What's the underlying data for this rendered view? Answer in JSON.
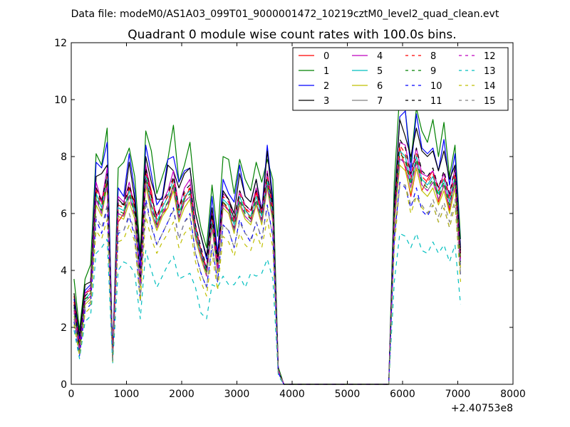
{
  "figure": {
    "suptitle": "Data file: modeM0/AS1A03_099T01_9000001472_10219cztM0_level2_quad_clean.evt"
  },
  "chart_data": {
    "type": "line",
    "title": "Quadrant 0 module wise count rates with 100.0s bins.",
    "xlabel": "",
    "ylabel": "",
    "x_offset_label": "+2.40753e8",
    "xlim": [
      0,
      8000
    ],
    "ylim": [
      0,
      12
    ],
    "xticks": [
      0,
      1000,
      2000,
      3000,
      4000,
      5000,
      6000,
      7000,
      8000
    ],
    "yticks": [
      0,
      2,
      4,
      6,
      8,
      10,
      12
    ],
    "xtick_labels": [
      "0",
      "1000",
      "2000",
      "3000",
      "4000",
      "5000",
      "6000",
      "7000",
      "8000"
    ],
    "ytick_labels": [
      "0",
      "2",
      "4",
      "6",
      "8",
      "10",
      "12"
    ],
    "grid": false,
    "legend_position": "top-right",
    "legend_columns": 4,
    "x": [
      50,
      150,
      250,
      350,
      450,
      550,
      650,
      750,
      850,
      950,
      1050,
      1150,
      1250,
      1350,
      1450,
      1550,
      1650,
      1750,
      1850,
      1950,
      2050,
      2150,
      2250,
      2350,
      2450,
      2550,
      2650,
      2750,
      2850,
      2950,
      3050,
      3150,
      3250,
      3350,
      3450,
      3550,
      3650,
      3750,
      3850,
      5750,
      5850,
      5950,
      6050,
      6150,
      6250,
      6350,
      6450,
      6550,
      6650,
      6750,
      6850,
      6950,
      7050
    ],
    "series": [
      {
        "name": "0",
        "color": "#ff0000",
        "dash": "solid",
        "values": [
          3.1,
          1.4,
          3.2,
          3.3,
          6.9,
          6.5,
          7.1,
          1.1,
          5.7,
          6.0,
          6.9,
          6.4,
          3.6,
          7.6,
          6.8,
          5.6,
          6.0,
          6.2,
          7.0,
          5.8,
          6.5,
          6.9,
          5.3,
          4.7,
          4.0,
          5.7,
          4.2,
          6.4,
          6.1,
          5.7,
          6.4,
          6.2,
          5.8,
          6.8,
          5.9,
          7.0,
          6.1,
          0.5,
          0,
          0,
          5.5,
          8.3,
          7.6,
          6.6,
          7.6,
          6.8,
          7.2,
          7.5,
          6.4,
          7.0,
          6.1,
          7.2,
          4.6
        ]
      },
      {
        "name": "1",
        "color": "#008000",
        "dash": "solid",
        "values": [
          3.7,
          1.9,
          3.7,
          4.2,
          8.1,
          7.7,
          9.0,
          1.0,
          7.6,
          7.8,
          8.3,
          7.3,
          4.6,
          8.9,
          8.2,
          6.7,
          7.3,
          7.9,
          9.1,
          7.1,
          7.7,
          8.5,
          6.5,
          5.5,
          4.8,
          7.0,
          5.2,
          8.0,
          7.9,
          6.7,
          7.9,
          7.2,
          6.8,
          7.8,
          7.1,
          7.9,
          7.2,
          0.6,
          0,
          0,
          7.1,
          10.3,
          9.6,
          7.8,
          9.7,
          8.9,
          8.5,
          9.3,
          8.0,
          9.2,
          7.3,
          8.4,
          5.1
        ]
      },
      {
        "name": "2",
        "color": "#0000ff",
        "dash": "solid",
        "values": [
          3.0,
          1.6,
          3.3,
          3.5,
          7.8,
          7.6,
          8.5,
          1.1,
          6.9,
          6.6,
          8.1,
          6.8,
          4.1,
          8.4,
          7.4,
          6.3,
          6.6,
          7.9,
          8.0,
          7.1,
          7.5,
          7.6,
          6.0,
          5.2,
          4.4,
          6.6,
          4.6,
          7.2,
          6.7,
          6.4,
          7.7,
          6.6,
          6.4,
          7.2,
          6.1,
          8.4,
          6.5,
          0.5,
          0,
          0,
          6.4,
          9.4,
          9.6,
          7.5,
          9.5,
          8.3,
          8.1,
          8.3,
          7.5,
          8.6,
          7.0,
          8.1,
          4.8
        ]
      },
      {
        "name": "3",
        "color": "#000000",
        "dash": "solid",
        "values": [
          3.2,
          1.7,
          3.5,
          3.6,
          7.3,
          7.4,
          7.7,
          1.0,
          6.5,
          6.3,
          7.8,
          6.5,
          4.5,
          8.0,
          7.1,
          6.5,
          6.5,
          7.7,
          7.5,
          6.9,
          7.4,
          7.6,
          6.0,
          5.2,
          4.5,
          6.2,
          4.4,
          6.8,
          6.5,
          6.0,
          7.4,
          6.6,
          6.4,
          7.2,
          6.0,
          8.2,
          6.3,
          0.5,
          0,
          0,
          6.3,
          9.3,
          8.7,
          8.0,
          9.0,
          8.2,
          8.0,
          8.2,
          7.5,
          8.2,
          7.2,
          7.7,
          4.7
        ]
      },
      {
        "name": "4",
        "color": "#bf00bf",
        "dash": "solid",
        "values": [
          2.8,
          1.3,
          3.2,
          3.4,
          7.1,
          6.4,
          7.6,
          1.0,
          6.6,
          6.4,
          7.1,
          6.2,
          3.7,
          7.7,
          6.6,
          5.9,
          6.4,
          6.8,
          7.5,
          6.2,
          6.9,
          7.2,
          5.6,
          4.7,
          4.1,
          6.0,
          4.3,
          6.7,
          6.5,
          5.8,
          6.8,
          6.3,
          6.1,
          6.9,
          6.1,
          7.5,
          6.2,
          0.5,
          0,
          0,
          6.1,
          8.5,
          8.4,
          7.3,
          8.3,
          7.4,
          7.3,
          7.5,
          6.9,
          7.4,
          6.6,
          7.6,
          4.4
        ]
      },
      {
        "name": "5",
        "color": "#00bfbf",
        "dash": "solid",
        "values": [
          2.6,
          1.2,
          3.0,
          3.2,
          6.7,
          6.2,
          7.4,
          0.9,
          6.2,
          6.1,
          6.8,
          6.1,
          3.6,
          7.4,
          6.3,
          5.7,
          6.2,
          6.6,
          7.2,
          6.0,
          6.6,
          6.8,
          5.4,
          4.6,
          4.0,
          5.8,
          4.1,
          6.5,
          6.3,
          5.6,
          6.6,
          6.1,
          5.9,
          6.6,
          5.9,
          7.2,
          6.0,
          0.5,
          0,
          0,
          5.9,
          8.2,
          8.0,
          7.1,
          8.0,
          7.2,
          7.0,
          7.3,
          6.7,
          7.2,
          6.4,
          7.3,
          4.3
        ]
      },
      {
        "name": "6",
        "color": "#bfbf00",
        "dash": "solid",
        "values": [
          2.4,
          1.1,
          2.8,
          3.0,
          6.3,
          5.9,
          7.0,
          0.9,
          5.9,
          5.8,
          6.4,
          5.8,
          3.4,
          7.0,
          6.0,
          5.4,
          5.9,
          6.2,
          6.8,
          5.7,
          6.2,
          6.5,
          5.1,
          4.4,
          3.8,
          5.5,
          3.9,
          6.2,
          6.0,
          5.3,
          6.3,
          5.8,
          5.6,
          6.3,
          5.6,
          6.9,
          5.7,
          0.5,
          0,
          0,
          5.6,
          7.7,
          7.5,
          6.7,
          7.6,
          6.8,
          6.6,
          6.9,
          6.3,
          6.8,
          6.0,
          6.9,
          4.1
        ]
      },
      {
        "name": "7",
        "color": "#808080",
        "dash": "solid",
        "values": [
          2.5,
          1.2,
          2.9,
          3.1,
          6.5,
          6.0,
          7.2,
          0.9,
          6.0,
          5.9,
          6.6,
          6.0,
          3.5,
          7.2,
          6.1,
          5.5,
          6.0,
          6.4,
          7.0,
          5.8,
          6.4,
          6.6,
          5.2,
          4.5,
          3.9,
          5.6,
          4.0,
          6.3,
          6.1,
          5.4,
          6.4,
          5.9,
          5.7,
          6.4,
          5.7,
          7.0,
          5.8,
          0.5,
          0,
          0,
          5.8,
          7.9,
          7.8,
          6.9,
          7.8,
          7.0,
          6.8,
          7.1,
          6.5,
          7.0,
          6.2,
          7.1,
          4.2
        ]
      },
      {
        "name": "8",
        "color": "#ff0000",
        "dash": "dashed",
        "values": [
          2.9,
          1.3,
          3.1,
          3.2,
          6.8,
          6.3,
          7.3,
          1.0,
          6.3,
          6.2,
          6.9,
          6.2,
          3.7,
          7.5,
          6.5,
          5.8,
          6.3,
          6.6,
          7.2,
          6.1,
          6.7,
          6.9,
          5.5,
          4.7,
          4.0,
          5.9,
          4.2,
          6.6,
          6.4,
          5.7,
          6.7,
          6.2,
          6.0,
          6.7,
          6.0,
          7.3,
          6.1,
          0.5,
          0,
          0,
          6.0,
          8.4,
          8.1,
          7.2,
          8.1,
          7.3,
          7.1,
          7.4,
          6.8,
          7.3,
          6.5,
          7.4,
          4.4
        ]
      },
      {
        "name": "9",
        "color": "#008000",
        "dash": "dashed",
        "values": [
          2.7,
          1.2,
          3.0,
          3.1,
          6.6,
          6.1,
          7.1,
          0.9,
          6.1,
          6.0,
          6.7,
          6.0,
          3.6,
          7.3,
          6.3,
          5.6,
          6.1,
          6.4,
          7.0,
          5.9,
          6.5,
          6.7,
          5.3,
          4.6,
          3.9,
          5.7,
          4.1,
          6.4,
          6.2,
          5.5,
          6.5,
          6.0,
          5.8,
          6.5,
          5.8,
          7.1,
          5.9,
          0.5,
          0,
          0,
          5.9,
          8.1,
          7.9,
          7.0,
          7.9,
          7.1,
          6.9,
          7.2,
          6.6,
          7.1,
          6.3,
          7.2,
          4.3
        ]
      },
      {
        "name": "10",
        "color": "#0000ff",
        "dash": "dashed",
        "values": [
          2.2,
          1.0,
          2.6,
          2.8,
          5.8,
          5.3,
          6.2,
          0.8,
          5.3,
          5.4,
          5.9,
          5.2,
          2.9,
          6.5,
          5.6,
          4.9,
          5.3,
          5.7,
          6.2,
          5.1,
          5.7,
          6.0,
          4.6,
          3.9,
          3.4,
          4.9,
          3.6,
          5.6,
          5.4,
          4.8,
          5.8,
          5.3,
          5.0,
          5.7,
          5.1,
          6.3,
          5.2,
          0.4,
          0,
          0,
          5.1,
          7.1,
          6.9,
          6.2,
          6.9,
          6.1,
          5.9,
          6.3,
          5.7,
          6.2,
          5.5,
          6.3,
          3.8
        ]
      },
      {
        "name": "11",
        "color": "#000000",
        "dash": "dashed",
        "values": [
          2.8,
          1.3,
          3.1,
          3.3,
          6.9,
          6.4,
          7.4,
          1.0,
          6.4,
          6.3,
          7.0,
          6.3,
          3.7,
          7.6,
          6.6,
          5.9,
          6.4,
          6.7,
          7.3,
          6.2,
          6.8,
          7.0,
          5.6,
          4.8,
          4.1,
          6.0,
          4.3,
          6.7,
          6.5,
          5.8,
          6.8,
          6.3,
          6.1,
          6.8,
          6.1,
          7.4,
          6.2,
          0.5,
          0,
          0,
          6.1,
          8.6,
          8.3,
          7.4,
          8.3,
          7.5,
          7.3,
          7.6,
          6.9,
          7.5,
          6.7,
          7.6,
          4.5
        ]
      },
      {
        "name": "12",
        "color": "#bf00bf",
        "dash": "dashed",
        "values": [
          2.6,
          1.2,
          2.9,
          3.1,
          6.5,
          6.0,
          7.0,
          0.9,
          6.0,
          5.9,
          6.6,
          5.9,
          3.5,
          7.2,
          6.2,
          5.5,
          6.0,
          6.3,
          6.9,
          5.8,
          6.4,
          6.6,
          5.2,
          4.5,
          3.8,
          5.6,
          4.0,
          6.3,
          6.1,
          5.4,
          6.4,
          5.9,
          5.7,
          6.4,
          5.7,
          7.0,
          5.8,
          0.5,
          0,
          0,
          5.8,
          8.0,
          7.7,
          6.9,
          7.8,
          7.0,
          6.8,
          7.1,
          6.5,
          7.0,
          6.2,
          7.1,
          4.2
        ]
      },
      {
        "name": "13",
        "color": "#00bfbf",
        "dash": "dashed",
        "values": [
          1.9,
          0.9,
          2.2,
          2.4,
          4.6,
          4.8,
          5.1,
          0.7,
          4.0,
          4.3,
          4.2,
          3.9,
          2.3,
          4.7,
          4.0,
          3.4,
          3.8,
          4.2,
          4.5,
          3.7,
          3.8,
          3.9,
          3.4,
          2.5,
          2.3,
          3.5,
          3.4,
          3.8,
          3.5,
          3.5,
          3.8,
          3.4,
          3.9,
          3.8,
          3.9,
          4.4,
          3.7,
          0.3,
          0,
          0,
          3.6,
          5.3,
          5.2,
          4.8,
          5.3,
          4.7,
          4.6,
          5.0,
          4.6,
          4.9,
          4.3,
          4.9,
          2.8
        ]
      },
      {
        "name": "14",
        "color": "#bfbf00",
        "dash": "dashed",
        "values": [
          2.1,
          1.0,
          2.5,
          2.7,
          5.4,
          5.1,
          5.8,
          0.8,
          5.0,
          5.1,
          5.6,
          5.0,
          2.9,
          5.9,
          5.1,
          4.6,
          5.0,
          5.3,
          5.7,
          4.8,
          5.3,
          5.5,
          4.3,
          3.6,
          3.1,
          4.6,
          3.3,
          5.2,
          5.0,
          4.5,
          5.3,
          4.9,
          4.7,
          5.3,
          4.8,
          5.8,
          4.8,
          0.4,
          0,
          0,
          4.8,
          7.0,
          7.0,
          6.0,
          6.6,
          6.2,
          6.0,
          6.3,
          5.7,
          6.2,
          5.5,
          6.3,
          3.6
        ]
      },
      {
        "name": "15",
        "color": "#808080",
        "dash": "dashed",
        "values": [
          2.3,
          1.1,
          2.7,
          2.9,
          5.9,
          5.5,
          6.3,
          0.8,
          5.4,
          5.4,
          6.0,
          5.3,
          3.1,
          6.4,
          5.5,
          4.9,
          5.3,
          5.7,
          6.1,
          5.1,
          5.7,
          5.9,
          4.6,
          3.9,
          3.4,
          4.9,
          3.6,
          5.6,
          5.4,
          4.8,
          5.7,
          5.3,
          5.1,
          5.7,
          5.1,
          6.2,
          5.2,
          0.4,
          0,
          0,
          5.2,
          7.0,
          7.0,
          6.3,
          6.6,
          6.3,
          6.0,
          6.5,
          5.9,
          6.4,
          5.7,
          6.5,
          3.9
        ]
      }
    ]
  }
}
